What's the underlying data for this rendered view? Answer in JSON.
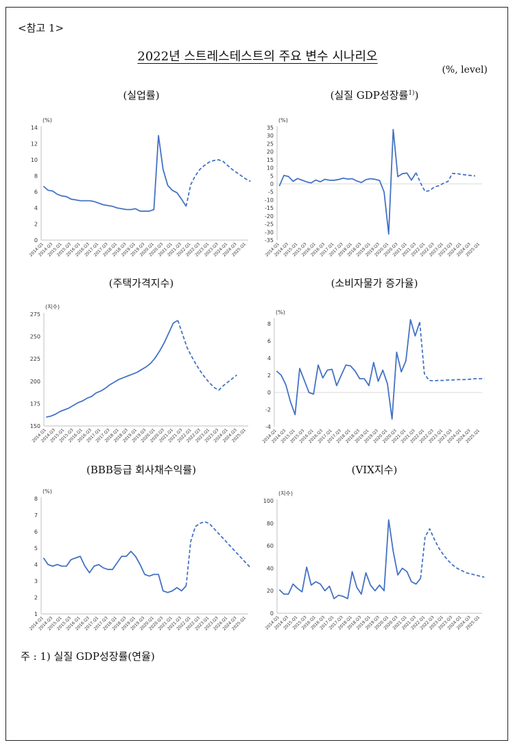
{
  "reference_label": "<참고 1>",
  "main_title": "2022년 스트레스테스트의 주요 변수 시나리오",
  "unit_note": "(%, level)",
  "footnote": "주 : 1) 실질 GDP성장률(연율)",
  "panels": [
    {
      "title": "(실업률)",
      "title_sup": ""
    },
    {
      "title": "(실질 GDP성장률",
      "title_sup": "1)"
    },
    {
      "title": "(주택가격지수)",
      "title_sup": ""
    },
    {
      "title": "(소비자물가 증가율)",
      "title_sup": ""
    },
    {
      "title": "(BBB등급 회사채수익률)",
      "title_sup": ""
    },
    {
      "title": "(VIX지수)",
      "title_sup": ""
    }
  ],
  "colors": {
    "line": "#4472c4",
    "axis": "#bfbfbf",
    "zero": "#d9d9d9"
  },
  "chart_data": [
    {
      "type": "line",
      "unit_label": "(%)",
      "yticks": [
        0,
        2,
        4,
        6,
        8,
        10,
        12,
        14
      ],
      "ylim": [
        0,
        14
      ],
      "xticks": [
        "2014.Q1",
        "2014.Q3",
        "2015.Q1",
        "2015.Q3",
        "2016.Q1",
        "2016.Q3",
        "2017.Q1",
        "2017.Q3",
        "2018.Q1",
        "2018.Q3",
        "2019.Q1",
        "2019.Q3",
        "2020.Q1",
        "2020.Q3",
        "2021.Q1",
        "2021.Q3",
        "2022.Q1",
        "2022.Q3",
        "2023.Q1",
        "2023.Q3",
        "2024.Q1",
        "2024.Q3",
        "2025.Q1"
      ],
      "x_start": "2014.Q1",
      "series": [
        {
          "style": "solid",
          "values": [
            6.7,
            6.2,
            6.1,
            5.7,
            5.5,
            5.4,
            5.1,
            5.0,
            4.9,
            4.9,
            4.9,
            4.8,
            4.6,
            4.4,
            4.3,
            4.2,
            4.0,
            3.9,
            3.8,
            3.8,
            3.9,
            3.6,
            3.6,
            3.6,
            3.8,
            13.0,
            8.8,
            6.8,
            6.2,
            5.9,
            5.1,
            4.2
          ]
        },
        {
          "style": "dashed",
          "start": "2021.Q4",
          "values": [
            4.2,
            6.9,
            8.0,
            8.8,
            9.3,
            9.7,
            9.9,
            10.0,
            9.8,
            9.3,
            8.8,
            8.4,
            8.0,
            7.6,
            7.3
          ]
        }
      ]
    },
    {
      "type": "line",
      "unit_label": "(%)",
      "yticks": [
        35,
        30,
        25,
        20,
        15,
        10,
        5,
        0,
        -5,
        -10,
        -15,
        -20,
        -25,
        -30,
        -35
      ],
      "ylim": [
        -35,
        35
      ],
      "xticks": [
        "2014.Q1",
        "2014.Q3",
        "2015.Q1",
        "2015.Q3",
        "2016.Q1",
        "2016.Q3",
        "2017.Q1",
        "2017.Q3",
        "2018.Q1",
        "2018.Q3",
        "2019.Q1",
        "2019.Q3",
        "2020.Q1",
        "2020.Q3",
        "2021.Q1",
        "2021.Q3",
        "2022.Q1",
        "2022.Q3",
        "2023.Q1",
        "2023.Q3",
        "2024.Q1",
        "2024.Q3",
        "2025.Q1"
      ],
      "x_start": "2014.Q1",
      "zero_line": true,
      "series": [
        {
          "style": "solid",
          "values": [
            -1.4,
            5.2,
            4.6,
            1.6,
            3.3,
            2.3,
            1.2,
            0.6,
            2.4,
            1.3,
            2.8,
            2.2,
            2.2,
            2.7,
            3.5,
            3.0,
            3.2,
            1.8,
            0.8,
            2.6,
            3.2,
            2.8,
            2.1,
            -5.1,
            -31.2,
            33.8,
            4.5,
            6.3,
            6.7,
            2.3,
            6.9
          ]
        },
        {
          "style": "dashed",
          "start": "2021.Q3",
          "values": [
            6.9,
            0.5,
            -4.8,
            -4.2,
            -2.0,
            -1.2,
            0.3,
            1.5,
            6.5,
            6.3,
            5.9,
            5.5,
            5.2,
            4.9
          ]
        }
      ]
    },
    {
      "type": "line",
      "unit_label": "(지수)",
      "yticks": [
        150,
        175,
        200,
        225,
        250,
        275
      ],
      "ylim": [
        150,
        275
      ],
      "xticks": [
        "2014.Q1",
        "2014.Q3",
        "2015.Q1",
        "2015.Q3",
        "2016.Q1",
        "2016.Q3",
        "2017.Q1",
        "2017.Q3",
        "2018.Q1",
        "2018.Q3",
        "2019.Q1",
        "2019.Q3",
        "2020.Q1",
        "2020.Q3",
        "2021.Q1",
        "2021.Q3",
        "2022.Q1",
        "2022.Q3",
        "2023.Q1",
        "2023.Q3",
        "2024.Q1",
        "2024.Q3",
        "2025.Q1"
      ],
      "x_start": "2014.Q1",
      "series": [
        {
          "style": "solid",
          "values": [
            160,
            161,
            163,
            166,
            168,
            170,
            173,
            176,
            178,
            181,
            183,
            187,
            189,
            192,
            196,
            199,
            202,
            204,
            206,
            208,
            210,
            213,
            216,
            220,
            226,
            234,
            243,
            254,
            265,
            268
          ]
        },
        {
          "style": "dashed",
          "start": "2021.Q2",
          "values": [
            268,
            253,
            238,
            228,
            219,
            211,
            204,
            198,
            193,
            190,
            195,
            199,
            203,
            207
          ]
        }
      ]
    },
    {
      "type": "line",
      "unit_label": "(%)",
      "yticks": [
        -4,
        -2,
        0,
        2,
        4,
        6,
        8
      ],
      "ylim": [
        -4,
        8.5
      ],
      "xticks": [
        "2014.Q1",
        "2014.Q3",
        "2015.Q1",
        "2015.Q3",
        "2016.Q1",
        "2016.Q3",
        "2017.Q1",
        "2017.Q3",
        "2018.Q1",
        "2018.Q3",
        "2019.Q1",
        "2019.Q3",
        "2020.Q1",
        "2020.Q3",
        "2021.Q1",
        "2021.Q3",
        "2022.Q1",
        "2022.Q3",
        "2023.Q1",
        "2023.Q3",
        "2024.Q1",
        "2024.Q3",
        "2025.Q1"
      ],
      "x_start": "2014.Q1",
      "zero_line": true,
      "series": [
        {
          "style": "solid",
          "values": [
            2.5,
            2.0,
            0.9,
            -1.1,
            -2.6,
            2.8,
            1.4,
            0.0,
            -0.2,
            3.2,
            1.7,
            2.6,
            2.7,
            0.8,
            2.0,
            3.2,
            3.1,
            2.5,
            1.6,
            1.6,
            0.8,
            3.5,
            1.3,
            2.6,
            1.0,
            -3.1,
            4.7,
            2.4,
            3.7,
            8.5,
            6.6,
            8.2
          ]
        },
        {
          "style": "dashed",
          "start": "2021.Q4",
          "values": [
            8.2,
            2.2,
            1.4,
            1.35,
            1.4,
            1.4,
            1.45,
            1.45,
            1.5,
            1.5,
            1.5,
            1.55,
            1.6,
            1.6,
            1.6
          ]
        }
      ]
    },
    {
      "type": "line",
      "unit_label": "(%)",
      "yticks": [
        1,
        2,
        3,
        4,
        5,
        6,
        7,
        8
      ],
      "ylim": [
        1,
        8
      ],
      "xticks": [
        "2014.Q1",
        "2014.Q3",
        "2015.Q1",
        "2015.Q3",
        "2016.Q1",
        "2016.Q3",
        "2017.Q1",
        "2017.Q3",
        "2018.Q1",
        "2018.Q3",
        "2019.Q1",
        "2019.Q3",
        "2020.Q1",
        "2020.Q3",
        "2021.Q1",
        "2021.Q3",
        "2022.Q1",
        "2022.Q3",
        "2023.Q1",
        "2023.Q3",
        "2024.Q1",
        "2024.Q3",
        "2025.Q1"
      ],
      "x_start": "2014.Q1",
      "series": [
        {
          "style": "solid",
          "values": [
            4.4,
            4.0,
            3.9,
            4.0,
            3.9,
            3.9,
            4.3,
            4.4,
            4.5,
            3.9,
            3.5,
            3.9,
            4.0,
            3.8,
            3.7,
            3.7,
            4.1,
            4.5,
            4.5,
            4.8,
            4.5,
            4.0,
            3.4,
            3.3,
            3.4,
            3.4,
            2.4,
            2.3,
            2.4,
            2.6,
            2.4,
            2.7
          ]
        },
        {
          "style": "dashed",
          "start": "2021.Q4",
          "values": [
            2.7,
            5.4,
            6.3,
            6.5,
            6.6,
            6.5,
            6.2,
            5.9,
            5.6,
            5.3,
            5.0,
            4.7,
            4.4,
            4.1,
            3.8
          ]
        }
      ]
    },
    {
      "type": "line",
      "unit_label": "(지수)",
      "yticks": [
        0,
        20,
        40,
        60,
        80,
        100
      ],
      "ylim": [
        0,
        100
      ],
      "xticks": [
        "2014.Q1",
        "2014.Q3",
        "2015.Q1",
        "2015.Q3",
        "2016.Q1",
        "2016.Q3",
        "2017.Q1",
        "2017.Q3",
        "2018.Q1",
        "2018.Q3",
        "2019.Q1",
        "2019.Q3",
        "2020.Q1",
        "2020.Q3",
        "2021.Q1",
        "2021.Q3",
        "2022.Q1",
        "2022.Q3",
        "2023.Q1",
        "2023.Q3",
        "2024.Q1",
        "2024.Q3",
        "2025.Q1"
      ],
      "x_start": "2014.Q1",
      "series": [
        {
          "style": "solid",
          "values": [
            21,
            17,
            17,
            26,
            22,
            19,
            41,
            25,
            28,
            26,
            20,
            24,
            13,
            16,
            15,
            13,
            37,
            23,
            17,
            36,
            25,
            20,
            25,
            20,
            83,
            55,
            34,
            40,
            37,
            28,
            26,
            31
          ]
        },
        {
          "style": "dashed",
          "start": "2021.Q4",
          "values": [
            31,
            68,
            75,
            66,
            58,
            52,
            47,
            43,
            40,
            38,
            36,
            35,
            34,
            33,
            32
          ]
        }
      ]
    }
  ]
}
